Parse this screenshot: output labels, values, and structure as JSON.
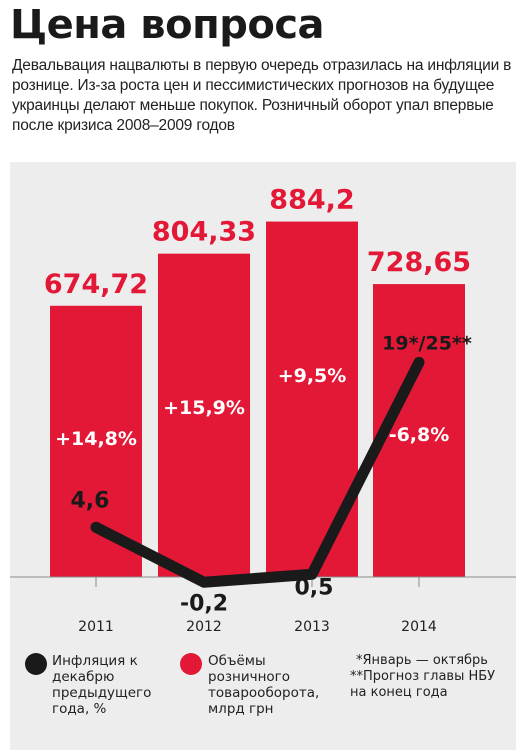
{
  "header": {
    "title": "Цена вопроса",
    "subtitle": "Девальвация нацвалюты в первую очередь отразилась на инфляции в рознице. Из-за роста цен и пессимистических прогнозов на будущее украинцы делают меньше покупок. Розничный оборот упал впервые после кризиса 2008–2009 годов"
  },
  "colors": {
    "bars": "#e31837",
    "line": "#1a1a1a",
    "background": "#ededed",
    "bar_text": "#ffffff",
    "value_text": "#e31837"
  },
  "chart_data": {
    "type": "bar",
    "title": "",
    "xlabel": "",
    "ylabel": "",
    "categories": [
      "2011",
      "2012",
      "2013",
      "2014"
    ],
    "series": [
      {
        "name": "Объёмы розничного товарооборота, млрд грн",
        "chart": "bar",
        "values": [
          674.72,
          804.33,
          884.2,
          728.65
        ],
        "value_labels": [
          "674,72",
          "804,33",
          "884,2",
          "728,65"
        ],
        "change_labels": [
          "+14,8%",
          "+15,9%",
          "+9,5%",
          "-6,8%"
        ]
      },
      {
        "name": "Инфляция к декабрю предыдущего года, %",
        "chart": "line",
        "values": [
          4.6,
          -0.2,
          0.5,
          19
        ],
        "value_labels": [
          "4,6",
          "-0,2",
          "0,5",
          "19*/25**"
        ]
      }
    ],
    "bar_ylim": [
      0,
      1000
    ],
    "line_ylim": [
      -0.35,
      21.3
    ],
    "grid": false,
    "legend_position": "bottom"
  },
  "legend": {
    "inflation": "Инфляция к декабрю предыдущего года, %",
    "turnover": "Объёмы розничного товарооборота, млрд грн",
    "notes": [
      "*Январь — октябрь",
      "**Прогноз главы НБУ на конец года"
    ]
  }
}
